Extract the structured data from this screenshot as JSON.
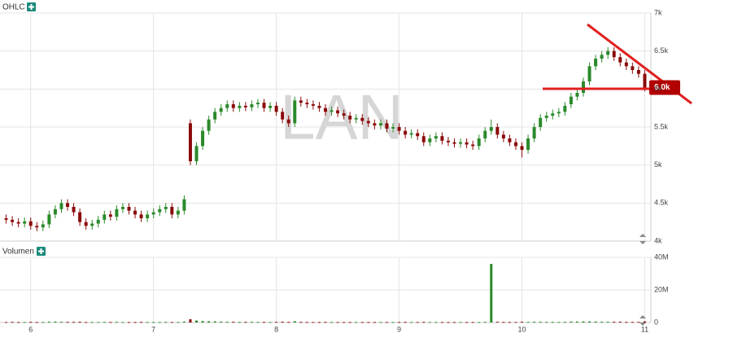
{
  "chart_data": {
    "type": "candlestick",
    "title": "OHLC",
    "volume_title": "Volumen",
    "watermark": "LAN",
    "last_label": "6.0k",
    "x": [
      5.8,
      5.85,
      5.9,
      5.95,
      6.0,
      6.05,
      6.1,
      6.15,
      6.2,
      6.25,
      6.3,
      6.35,
      6.4,
      6.45,
      6.5,
      6.55,
      6.6,
      6.65,
      6.7,
      6.75,
      6.8,
      6.85,
      6.9,
      6.95,
      7.0,
      7.05,
      7.1,
      7.15,
      7.2,
      7.25,
      7.3,
      7.35,
      7.4,
      7.45,
      7.5,
      7.55,
      7.6,
      7.65,
      7.7,
      7.75,
      7.8,
      7.85,
      7.9,
      7.95,
      8.0,
      8.05,
      8.1,
      8.15,
      8.2,
      8.25,
      8.3,
      8.35,
      8.4,
      8.45,
      8.5,
      8.55,
      8.6,
      8.65,
      8.7,
      8.75,
      8.8,
      8.85,
      8.9,
      8.95,
      9.0,
      9.05,
      9.1,
      9.15,
      9.2,
      9.25,
      9.3,
      9.35,
      9.4,
      9.45,
      9.5,
      9.55,
      9.6,
      9.65,
      9.7,
      9.75,
      9.8,
      9.85,
      9.9,
      9.95,
      10.0,
      10.05,
      10.1,
      10.15,
      10.2,
      10.25,
      10.3,
      10.35,
      10.4,
      10.45,
      10.5,
      10.55,
      10.6,
      10.65,
      10.7,
      10.75,
      10.8,
      10.85,
      10.9,
      10.95,
      11.0
    ],
    "open": [
      4300,
      4280,
      4250,
      4230,
      4260,
      4200,
      4180,
      4220,
      4350,
      4420,
      4500,
      4450,
      4380,
      4250,
      4200,
      4230,
      4280,
      4350,
      4320,
      4420,
      4450,
      4400,
      4350,
      4300,
      4350,
      4380,
      4420,
      4450,
      4350,
      4400,
      5550,
      5050,
      5250,
      5450,
      5600,
      5700,
      5750,
      5800,
      5750,
      5780,
      5760,
      5800,
      5820,
      5750,
      5780,
      5700,
      5600,
      5550,
      5850,
      5820,
      5800,
      5780,
      5750,
      5700,
      5720,
      5680,
      5650,
      5600,
      5620,
      5580,
      5550,
      5520,
      5550,
      5480,
      5500,
      5450,
      5400,
      5420,
      5380,
      5300,
      5350,
      5380,
      5320,
      5300,
      5280,
      5300,
      5270,
      5250,
      5350,
      5450,
      5500,
      5400,
      5350,
      5300,
      5250,
      5200,
      5350,
      5500,
      5620,
      5650,
      5680,
      5700,
      5800,
      5900,
      5950,
      6100,
      6300,
      6400,
      6450,
      6500,
      6420,
      6350,
      6300,
      6250,
      6200
    ],
    "high": [
      4350,
      4330,
      4300,
      4310,
      4310,
      4250,
      4270,
      4400,
      4470,
      4550,
      4550,
      4500,
      4430,
      4300,
      4280,
      4330,
      4400,
      4400,
      4470,
      4500,
      4500,
      4450,
      4400,
      4400,
      4430,
      4470,
      4500,
      4500,
      4450,
      4600,
      5600,
      5300,
      5500,
      5650,
      5750,
      5800,
      5850,
      5850,
      5830,
      5830,
      5850,
      5870,
      5870,
      5830,
      5830,
      5750,
      5650,
      5900,
      5900,
      5870,
      5850,
      5830,
      5800,
      5770,
      5770,
      5730,
      5700,
      5670,
      5670,
      5630,
      5600,
      5600,
      5600,
      5550,
      5550,
      5500,
      5470,
      5470,
      5430,
      5400,
      5430,
      5430,
      5370,
      5350,
      5350,
      5350,
      5320,
      5400,
      5500,
      5600,
      5550,
      5450,
      5400,
      5350,
      5300,
      5400,
      5550,
      5670,
      5700,
      5730,
      5750,
      5830,
      5950,
      6000,
      6150,
      6350,
      6450,
      6500,
      6550,
      6550,
      6470,
      6400,
      6350,
      6300,
      6250
    ],
    "low": [
      4230,
      4200,
      4180,
      4180,
      4150,
      4130,
      4130,
      4170,
      4300,
      4370,
      4400,
      4330,
      4200,
      4150,
      4150,
      4180,
      4230,
      4270,
      4270,
      4370,
      4350,
      4300,
      4250,
      4250,
      4300,
      4330,
      4370,
      4300,
      4300,
      4350,
      5000,
      5000,
      5200,
      5400,
      5550,
      5650,
      5700,
      5700,
      5700,
      5710,
      5710,
      5750,
      5700,
      5700,
      5650,
      5550,
      5500,
      5500,
      5770,
      5750,
      5730,
      5700,
      5650,
      5650,
      5630,
      5600,
      5550,
      5550,
      5530,
      5500,
      5470,
      5470,
      5430,
      5430,
      5400,
      5350,
      5350,
      5330,
      5250,
      5250,
      5300,
      5270,
      5250,
      5230,
      5230,
      5220,
      5200,
      5200,
      5300,
      5400,
      5350,
      5300,
      5250,
      5200,
      5100,
      5150,
      5300,
      5450,
      5570,
      5600,
      5630,
      5650,
      5750,
      5850,
      5900,
      6050,
      6250,
      6350,
      6400,
      6370,
      6300,
      6250,
      6200,
      6150,
      5970
    ],
    "close": [
      4280,
      4250,
      4230,
      4260,
      4200,
      4180,
      4220,
      4350,
      4420,
      4500,
      4450,
      4380,
      4250,
      4200,
      4230,
      4280,
      4350,
      4320,
      4420,
      4450,
      4400,
      4350,
      4300,
      4350,
      4380,
      4420,
      4450,
      4350,
      4400,
      4550,
      5050,
      5250,
      5450,
      5600,
      5700,
      5750,
      5800,
      5750,
      5780,
      5760,
      5800,
      5820,
      5750,
      5780,
      5700,
      5600,
      5550,
      5850,
      5820,
      5800,
      5780,
      5750,
      5700,
      5720,
      5680,
      5650,
      5600,
      5620,
      5580,
      5550,
      5520,
      5550,
      5480,
      5500,
      5450,
      5400,
      5420,
      5380,
      5300,
      5350,
      5380,
      5320,
      5300,
      5280,
      5300,
      5270,
      5250,
      5350,
      5450,
      5500,
      5400,
      5350,
      5300,
      5250,
      5200,
      5350,
      5500,
      5620,
      5650,
      5680,
      5700,
      5780,
      5900,
      5950,
      6100,
      6300,
      6400,
      6450,
      6500,
      6420,
      6350,
      6300,
      6250,
      6200,
      6020
    ],
    "volume": [
      300000,
      400000,
      300000,
      300000,
      400000,
      300000,
      300000,
      500000,
      600000,
      500000,
      400000,
      400000,
      500000,
      300000,
      300000,
      300000,
      400000,
      300000,
      400000,
      300000,
      300000,
      300000,
      400000,
      300000,
      300000,
      300000,
      400000,
      300000,
      300000,
      600000,
      2000000,
      1200000,
      900000,
      800000,
      700000,
      600000,
      500000,
      500000,
      400000,
      400000,
      400000,
      400000,
      400000,
      300000,
      400000,
      500000,
      400000,
      800000,
      400000,
      300000,
      300000,
      300000,
      400000,
      300000,
      300000,
      300000,
      300000,
      300000,
      300000,
      300000,
      300000,
      300000,
      300000,
      300000,
      300000,
      400000,
      300000,
      300000,
      400000,
      300000,
      300000,
      300000,
      300000,
      300000,
      300000,
      300000,
      300000,
      300000,
      400000,
      36000000,
      500000,
      400000,
      300000,
      300000,
      500000,
      400000,
      500000,
      500000,
      400000,
      400000,
      300000,
      400000,
      600000,
      600000,
      700000,
      700000,
      600000,
      500000,
      500000,
      500000,
      500000,
      400000,
      400000,
      400000,
      700000
    ],
    "colors": {
      "up": "#2a8a2a",
      "down": "#8b0a0a"
    },
    "xlim": [
      5.75,
      11.05
    ],
    "xticks": [
      6,
      7,
      8,
      9,
      10,
      11
    ],
    "ylim": [
      4000,
      7000
    ],
    "yticks": [
      {
        "value": 4000,
        "label": "4k"
      },
      {
        "value": 4500,
        "label": "4.5k"
      },
      {
        "value": 5000,
        "label": "5k"
      },
      {
        "value": 5500,
        "label": "5.5k"
      },
      {
        "value": 6000,
        "label": "6k"
      },
      {
        "value": 6500,
        "label": "6.5k"
      },
      {
        "value": 7000,
        "label": "7k"
      }
    ],
    "volume_lim": [
      0,
      40000000
    ],
    "volume_ticks": [
      0,
      {
        "value": 20000000,
        "label": "20M"
      },
      {
        "value": 40000000,
        "label": "40M"
      }
    ],
    "grid": true
  }
}
